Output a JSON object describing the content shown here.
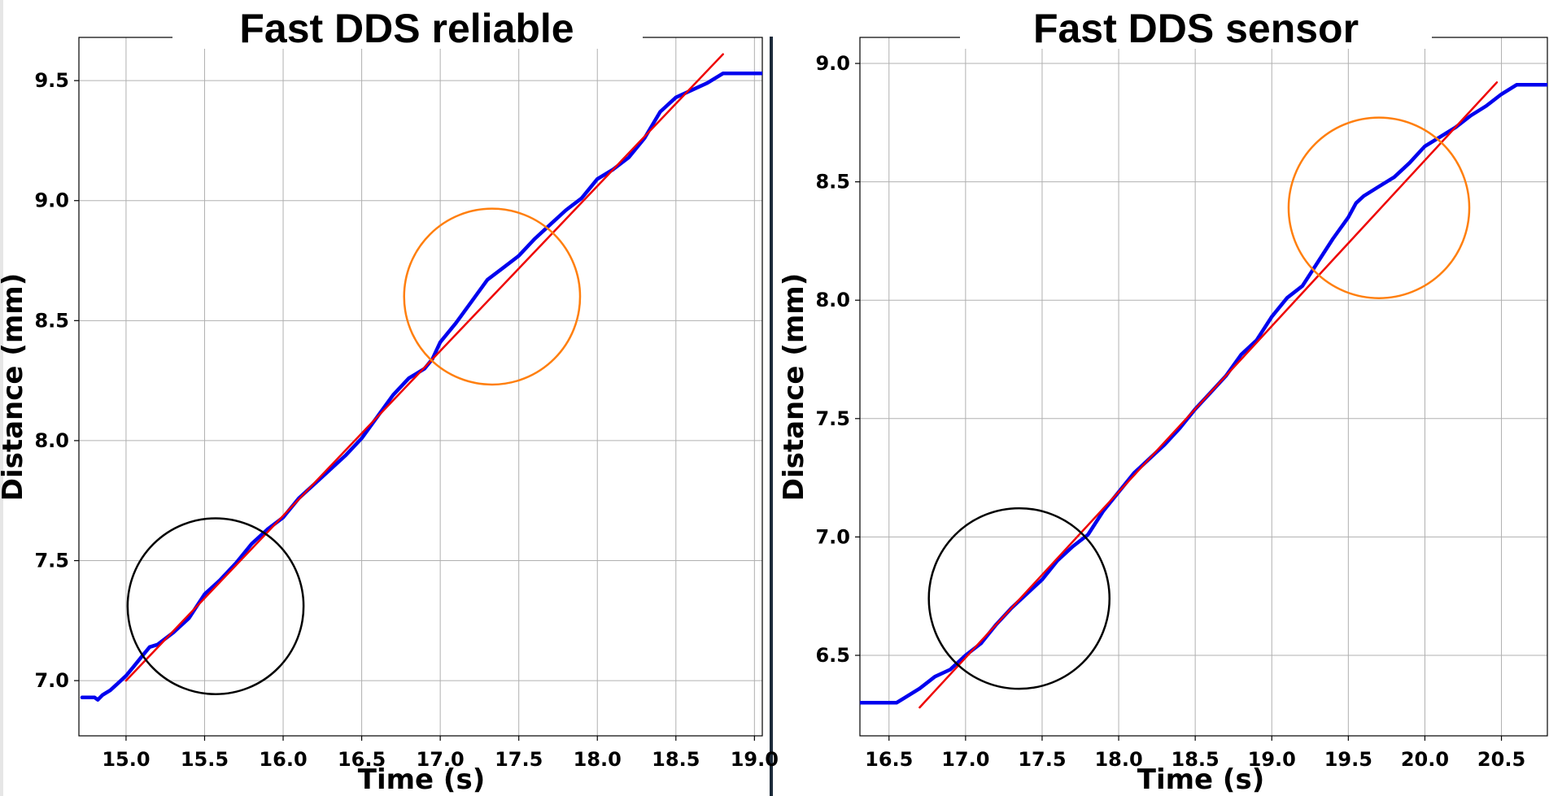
{
  "chart_data": [
    {
      "type": "line",
      "title": "Fast DDS reliable",
      "xlabel": "Time (s)",
      "ylabel": "Distance (mm)",
      "xlim": [
        14.7,
        19.05
      ],
      "ylim": [
        6.77,
        9.68
      ],
      "xticks": [
        15.0,
        15.5,
        16.0,
        16.5,
        17.0,
        17.5,
        18.0,
        18.5,
        19.0
      ],
      "xtick_labels": [
        "15.0",
        "15.5",
        "16.0",
        "16.5",
        "17.0",
        "17.5",
        "18.0",
        "18.5",
        "19.0"
      ],
      "yticks": [
        7.0,
        7.5,
        8.0,
        8.5,
        9.0,
        9.5
      ],
      "ytick_labels": [
        "7.0",
        "7.5",
        "8.0",
        "8.5",
        "9.0",
        "9.5"
      ],
      "grid": true,
      "series": [
        {
          "kind": "measured",
          "color": "#0000ee",
          "x": [
            14.72,
            14.8,
            14.82,
            14.85,
            14.9,
            14.95,
            15.0,
            15.05,
            15.1,
            15.15,
            15.2,
            15.3,
            15.4,
            15.5,
            15.6,
            15.7,
            15.8,
            15.9,
            16.0,
            16.1,
            16.2,
            16.3,
            16.4,
            16.5,
            16.6,
            16.7,
            16.8,
            16.9,
            16.95,
            17.0,
            17.1,
            17.2,
            17.3,
            17.4,
            17.5,
            17.6,
            17.7,
            17.8,
            17.9,
            18.0,
            18.1,
            18.2,
            18.3,
            18.4,
            18.5,
            18.6,
            18.7,
            18.8,
            19.05
          ],
          "y": [
            6.93,
            6.93,
            6.92,
            6.94,
            6.96,
            6.99,
            7.02,
            7.06,
            7.1,
            7.14,
            7.15,
            7.2,
            7.26,
            7.36,
            7.42,
            7.49,
            7.57,
            7.63,
            7.68,
            7.76,
            7.82,
            7.88,
            7.94,
            8.01,
            8.1,
            8.19,
            8.26,
            8.3,
            8.34,
            8.41,
            8.49,
            8.58,
            8.67,
            8.72,
            8.77,
            8.84,
            8.9,
            8.96,
            9.01,
            9.09,
            9.13,
            9.18,
            9.26,
            9.37,
            9.43,
            9.46,
            9.49,
            9.53,
            9.53
          ]
        },
        {
          "kind": "fit",
          "color": "#ee0000",
          "x": [
            15.0,
            18.8
          ],
          "y": [
            7.0,
            9.61
          ]
        }
      ],
      "annotations": [
        {
          "shape": "circle",
          "color": "#000000",
          "cx": 15.57,
          "cy": 7.31,
          "r_x": 0.56
        },
        {
          "shape": "circle",
          "color": "#ff7f0e",
          "cx": 17.33,
          "cy": 8.6,
          "r_x": 0.56
        }
      ]
    },
    {
      "type": "line",
      "title": "Fast DDS sensor",
      "xlabel": "Time (s)",
      "ylabel": "Distance (mm)",
      "xlim": [
        16.31,
        20.8
      ],
      "ylim": [
        6.16,
        9.11
      ],
      "xticks": [
        16.5,
        17.0,
        17.5,
        18.0,
        18.5,
        19.0,
        19.5,
        20.0,
        20.5
      ],
      "xtick_labels": [
        "16.5",
        "17.0",
        "17.5",
        "18.0",
        "18.5",
        "19.0",
        "19.5",
        "20.0",
        "20.5"
      ],
      "yticks": [
        6.5,
        7.0,
        7.5,
        8.0,
        8.5,
        9.0
      ],
      "ytick_labels": [
        "6.5",
        "7.0",
        "7.5",
        "8.0",
        "8.5",
        "9.0"
      ],
      "grid": true,
      "series": [
        {
          "kind": "measured",
          "color": "#0000ee",
          "x": [
            16.31,
            16.55,
            16.6,
            16.7,
            16.8,
            16.9,
            17.0,
            17.1,
            17.2,
            17.3,
            17.4,
            17.5,
            17.6,
            17.7,
            17.8,
            17.9,
            18.0,
            18.1,
            18.2,
            18.3,
            18.4,
            18.5,
            18.6,
            18.7,
            18.8,
            18.9,
            19.0,
            19.1,
            19.2,
            19.3,
            19.4,
            19.5,
            19.55,
            19.6,
            19.7,
            19.8,
            19.9,
            20.0,
            20.1,
            20.2,
            20.3,
            20.4,
            20.5,
            20.6,
            20.65,
            20.8
          ],
          "y": [
            6.3,
            6.3,
            6.32,
            6.36,
            6.41,
            6.44,
            6.5,
            6.55,
            6.63,
            6.7,
            6.76,
            6.82,
            6.9,
            6.96,
            7.01,
            7.11,
            7.19,
            7.27,
            7.33,
            7.39,
            7.46,
            7.54,
            7.61,
            7.68,
            7.77,
            7.83,
            7.93,
            8.01,
            8.06,
            8.16,
            8.26,
            8.35,
            8.41,
            8.44,
            8.48,
            8.52,
            8.58,
            8.65,
            8.69,
            8.73,
            8.78,
            8.82,
            8.87,
            8.91,
            8.91,
            8.91
          ]
        },
        {
          "kind": "fit",
          "color": "#ee0000",
          "x": [
            16.7,
            20.47
          ],
          "y": [
            6.28,
            8.92
          ]
        }
      ],
      "annotations": [
        {
          "shape": "circle",
          "color": "#000000",
          "cx": 17.35,
          "cy": 6.74,
          "r_x": 0.59
        },
        {
          "shape": "circle",
          "color": "#ff7f0e",
          "cx": 19.7,
          "cy": 8.39,
          "r_x": 0.59
        }
      ]
    }
  ]
}
